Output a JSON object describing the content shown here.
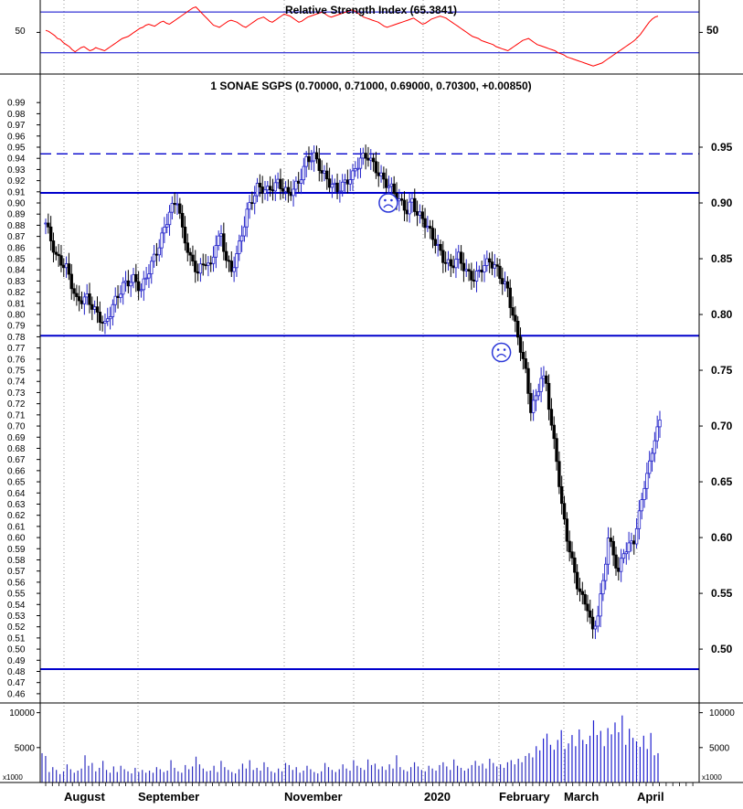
{
  "rsi": {
    "title": "Relative Strength Index (65.3841)",
    "level_label": "50",
    "level_label_right": "50",
    "line_color": "#ff0000",
    "upper_line": 70,
    "lower_line": 30,
    "ylim": [
      10,
      80
    ],
    "values": [
      52,
      51,
      49,
      47,
      44,
      43,
      40,
      38,
      36,
      33,
      31,
      33,
      35,
      36,
      34,
      32,
      33,
      35,
      34,
      33,
      32,
      34,
      36,
      38,
      40,
      42,
      44,
      45,
      46,
      48,
      50,
      52,
      54,
      55,
      57,
      58,
      57,
      56,
      58,
      60,
      61,
      59,
      58,
      60,
      62,
      64,
      66,
      68,
      70,
      72,
      74,
      75,
      72,
      69,
      66,
      63,
      60,
      57,
      56,
      55,
      57,
      59,
      61,
      62,
      61,
      60,
      58,
      56,
      55,
      57,
      59,
      61,
      63,
      64,
      65,
      63,
      61,
      60,
      62,
      64,
      66,
      68,
      67,
      66,
      64,
      62,
      60,
      61,
      63,
      65,
      66,
      67,
      68,
      69,
      70,
      68,
      66,
      65,
      66,
      67,
      68,
      69,
      70,
      71,
      72,
      71,
      69,
      67,
      65,
      64,
      63,
      62,
      61,
      60,
      58,
      56,
      55,
      56,
      57,
      58,
      59,
      60,
      61,
      62,
      63,
      64,
      62,
      60,
      58,
      59,
      61,
      63,
      64,
      65,
      66,
      65,
      64,
      62,
      60,
      58,
      56,
      54,
      52,
      50,
      48,
      46,
      45,
      44,
      42,
      41,
      40,
      39,
      38,
      36,
      35,
      34,
      33,
      32,
      34,
      36,
      38,
      40,
      42,
      43,
      44,
      42,
      40,
      38,
      37,
      36,
      35,
      34,
      33,
      32,
      30,
      29,
      28,
      26,
      25,
      24,
      23,
      22,
      21,
      20,
      19,
      18,
      17,
      18,
      19,
      20,
      22,
      24,
      26,
      28,
      30,
      32,
      34,
      36,
      38,
      40,
      42,
      45,
      48,
      52,
      56,
      60,
      63,
      65,
      66
    ]
  },
  "main": {
    "title": "1 SONAE SGPS (0.70000, 0.71000, 0.69000, 0.70300, +0.00850)",
    "ylim": [
      0.455,
      1.0
    ],
    "left_ticks": [
      "0.99",
      "0.98",
      "0.97",
      "0.96",
      "0.95",
      "0.94",
      "0.93",
      "0.92",
      "0.91",
      "0.90",
      "0.89",
      "0.88",
      "0.87",
      "0.86",
      "0.85",
      "0.84",
      "0.83",
      "0.82",
      "0.81",
      "0.80",
      "0.79",
      "0.78",
      "0.77",
      "0.76",
      "0.75",
      "0.74",
      "0.73",
      "0.72",
      "0.71",
      "0.70",
      "0.69",
      "0.68",
      "0.67",
      "0.66",
      "0.65",
      "0.64",
      "0.63",
      "0.62",
      "0.61",
      "0.60",
      "0.59",
      "0.58",
      "0.57",
      "0.56",
      "0.55",
      "0.54",
      "0.53",
      "0.52",
      "0.51",
      "0.50",
      "0.49",
      "0.48",
      "0.47",
      "0.46"
    ],
    "right_ticks": [
      "0.95",
      "0.90",
      "0.85",
      "0.80",
      "0.75",
      "0.70",
      "0.65",
      "0.60",
      "0.55",
      "0.50"
    ],
    "h_lines": [
      {
        "value": 0.944,
        "style": "dashed"
      },
      {
        "value": 0.909,
        "style": "solid"
      },
      {
        "value": 0.781,
        "style": "solid"
      },
      {
        "value": 0.482,
        "style": "solid"
      }
    ],
    "line_color": "#0000cc",
    "frowns": [
      {
        "index": 100,
        "value": 0.9
      },
      {
        "index": 133,
        "value": 0.766
      }
    ]
  },
  "volume": {
    "unit_label_left": "x1000",
    "unit_label_right": "x1000",
    "ylim": [
      0,
      11000
    ],
    "left_ticks": [
      "10000",
      "5000"
    ],
    "right_ticks": [
      "10000",
      "5000"
    ],
    "values": [
      4200,
      3800,
      1500,
      2200,
      1800,
      1200,
      1600,
      2600,
      1900,
      1400,
      1700,
      2000,
      3900,
      2400,
      2800,
      1600,
      2100,
      3100,
      1800,
      1400,
      2300,
      1500,
      2400,
      1900,
      1600,
      1300,
      2100,
      1500,
      1800,
      1400,
      1700,
      1400,
      2200,
      1900,
      1500,
      1700,
      3200,
      2100,
      1600,
      1400,
      2500,
      1900,
      2300,
      3700,
      2600,
      2000,
      1600,
      1700,
      2400,
      1500,
      3100,
      2200,
      1800,
      1500,
      1300,
      1900,
      2700,
      2000,
      3200,
      1800,
      2100,
      1700,
      2900,
      2200,
      1600,
      1400,
      2000,
      1600,
      2800,
      2500,
      1800,
      2200,
      1400,
      1700,
      2400,
      1900,
      1500,
      1300,
      1600,
      2800,
      2200,
      1800,
      1500,
      1900,
      2600,
      2000,
      1700,
      3200,
      2400,
      2100,
      1800,
      3300,
      2500,
      2700,
      1900,
      2300,
      1800,
      2600,
      2000,
      3900,
      2200,
      1800,
      1600,
      2200,
      2900,
      2300,
      1800,
      1600,
      2400,
      2000,
      1700,
      2500,
      2900,
      2300,
      1800,
      3300,
      2400,
      2100,
      1700,
      2000,
      2500,
      3100,
      2400,
      2700,
      2000,
      3400,
      2800,
      2300,
      2600,
      2100,
      2900,
      3200,
      2600,
      3400,
      2900,
      3800,
      4200,
      3600,
      5200,
      4600,
      6300,
      7000,
      5400,
      4700,
      6100,
      7500,
      4800,
      5600,
      6800,
      5200,
      7600,
      6100,
      5500,
      6700,
      8900,
      6800,
      7400,
      5200,
      7800,
      6900,
      8600,
      7200,
      9600,
      5400,
      7700,
      6400,
      5900,
      5100,
      6700,
      4800,
      7100,
      3900,
      4200
    ]
  },
  "x_months": [
    "August",
    "September",
    "November",
    "2020",
    "February",
    "March",
    "April"
  ]
}
